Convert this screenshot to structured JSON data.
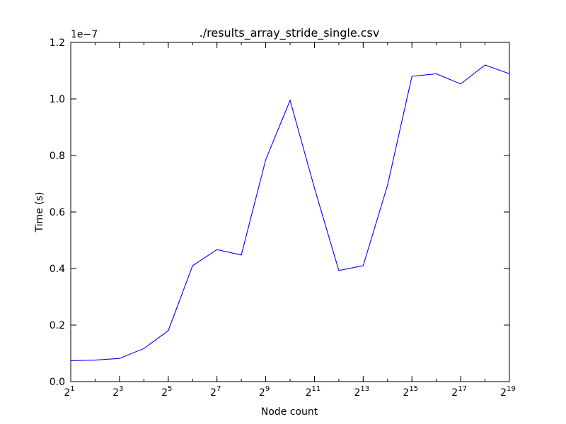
{
  "chart_data": {
    "type": "line",
    "title": "./results_array_stride_single.csv",
    "xlabel": "Node count",
    "ylabel": "Time (s)",
    "y_offset_text": "1e−7",
    "x_scale": "log2",
    "xlim": [
      2,
      524288
    ],
    "ylim": [
      0,
      1.2e-07
    ],
    "grid": false,
    "x_ticks": [
      {
        "value": 2,
        "base": "2",
        "exp": "1"
      },
      {
        "value": 8,
        "base": "2",
        "exp": "3"
      },
      {
        "value": 32,
        "base": "2",
        "exp": "5"
      },
      {
        "value": 128,
        "base": "2",
        "exp": "7"
      },
      {
        "value": 512,
        "base": "2",
        "exp": "9"
      },
      {
        "value": 2048,
        "base": "2",
        "exp": "11"
      },
      {
        "value": 8192,
        "base": "2",
        "exp": "13"
      },
      {
        "value": 32768,
        "base": "2",
        "exp": "15"
      },
      {
        "value": 131072,
        "base": "2",
        "exp": "17"
      },
      {
        "value": 524288,
        "base": "2",
        "exp": "19"
      }
    ],
    "y_ticks": [
      {
        "value": 0,
        "label": "0.0"
      },
      {
        "value": 2e-08,
        "label": "0.2"
      },
      {
        "value": 4e-08,
        "label": "0.4"
      },
      {
        "value": 6e-08,
        "label": "0.6"
      },
      {
        "value": 8e-08,
        "label": "0.8"
      },
      {
        "value": 1e-07,
        "label": "1.0"
      },
      {
        "value": 1.2e-07,
        "label": "1.2"
      }
    ],
    "series": [
      {
        "color": "#0000ff",
        "x": [
          2,
          4,
          8,
          16,
          32,
          64,
          128,
          256,
          512,
          1024,
          2048,
          4096,
          8192,
          16384,
          32768,
          65536,
          131072,
          262144,
          524288
        ],
        "y": [
          7.4e-09,
          7.6e-09,
          8.2e-09,
          1.17e-08,
          1.8e-08,
          4.1e-08,
          4.67e-08,
          4.48e-08,
          7.85e-08,
          9.95e-08,
          6.85e-08,
          3.93e-08,
          4.1e-08,
          6.95e-08,
          1.08e-07,
          1.089e-07,
          1.053e-07,
          1.12e-07,
          1.089e-07
        ]
      }
    ]
  }
}
